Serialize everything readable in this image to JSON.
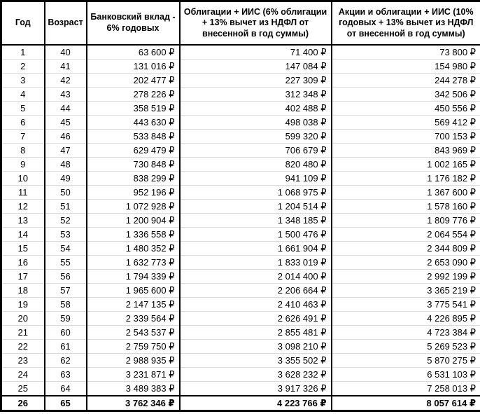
{
  "chart_data": {
    "type": "table",
    "title": "",
    "columns": [
      "Год",
      "Возраст",
      "Банковский вклад - 6% годовых",
      "Облигации + ИИС (6% облигации + 13% вычет из НДФЛ от внесенной в год суммы)",
      "Акции и облигации + ИИС (10% годовых + 13% вычет из НДФЛ от внесенной в год суммы)"
    ],
    "currency_symbol": "₽",
    "last_row_bold": true,
    "rows": [
      [
        "1",
        "40",
        "63 600 ₽",
        "71 400 ₽",
        "73 800 ₽"
      ],
      [
        "2",
        "41",
        "131 016 ₽",
        "147 084 ₽",
        "154 980 ₽"
      ],
      [
        "3",
        "42",
        "202 477 ₽",
        "227 309 ₽",
        "244 278 ₽"
      ],
      [
        "4",
        "43",
        "278 226 ₽",
        "312 348 ₽",
        "342 506 ₽"
      ],
      [
        "5",
        "44",
        "358 519 ₽",
        "402 488 ₽",
        "450 556 ₽"
      ],
      [
        "6",
        "45",
        "443 630 ₽",
        "498 038 ₽",
        "569 412 ₽"
      ],
      [
        "7",
        "46",
        "533 848 ₽",
        "599 320 ₽",
        "700 153 ₽"
      ],
      [
        "8",
        "47",
        "629 479 ₽",
        "706 679 ₽",
        "843 969 ₽"
      ],
      [
        "9",
        "48",
        "730 848 ₽",
        "820 480 ₽",
        "1 002 165 ₽"
      ],
      [
        "10",
        "49",
        "838 299 ₽",
        "941 109 ₽",
        "1 176 182 ₽"
      ],
      [
        "11",
        "50",
        "952 196 ₽",
        "1 068 975 ₽",
        "1 367 600 ₽"
      ],
      [
        "12",
        "51",
        "1 072 928 ₽",
        "1 204 514 ₽",
        "1 578 160 ₽"
      ],
      [
        "13",
        "52",
        "1 200 904 ₽",
        "1 348 185 ₽",
        "1 809 776 ₽"
      ],
      [
        "14",
        "53",
        "1 336 558 ₽",
        "1 500 476 ₽",
        "2 064 554 ₽"
      ],
      [
        "15",
        "54",
        "1 480 352 ₽",
        "1 661 904 ₽",
        "2 344 809 ₽"
      ],
      [
        "16",
        "55",
        "1 632 773 ₽",
        "1 833 019 ₽",
        "2 653 090 ₽"
      ],
      [
        "17",
        "56",
        "1 794 339 ₽",
        "2 014 400 ₽",
        "2 992 199 ₽"
      ],
      [
        "18",
        "57",
        "1 965 600 ₽",
        "2 206 664 ₽",
        "3 365 219 ₽"
      ],
      [
        "19",
        "58",
        "2 147 135 ₽",
        "2 410 463 ₽",
        "3 775 541 ₽"
      ],
      [
        "20",
        "59",
        "2 339 564 ₽",
        "2 626 491 ₽",
        "4 226 895 ₽"
      ],
      [
        "21",
        "60",
        "2 543 537 ₽",
        "2 855 481 ₽",
        "4 723 384 ₽"
      ],
      [
        "22",
        "61",
        "2 759 750 ₽",
        "3 098 210 ₽",
        "5 269 523 ₽"
      ],
      [
        "23",
        "62",
        "2 988 935 ₽",
        "3 355 502 ₽",
        "5 870 275 ₽"
      ],
      [
        "24",
        "63",
        "3 231 871 ₽",
        "3 628 232 ₽",
        "6 531 103 ₽"
      ],
      [
        "25",
        "64",
        "3 489 383 ₽",
        "3 917 326 ₽",
        "7 258 013 ₽"
      ],
      [
        "26",
        "65",
        "3 762 346 ₽",
        "4 223 766 ₽",
        "8 057 614 ₽"
      ]
    ]
  },
  "colors": {
    "border": "#000000",
    "row_separator": "#d9d9d9",
    "text": "#000000",
    "background": "#ffffff"
  }
}
